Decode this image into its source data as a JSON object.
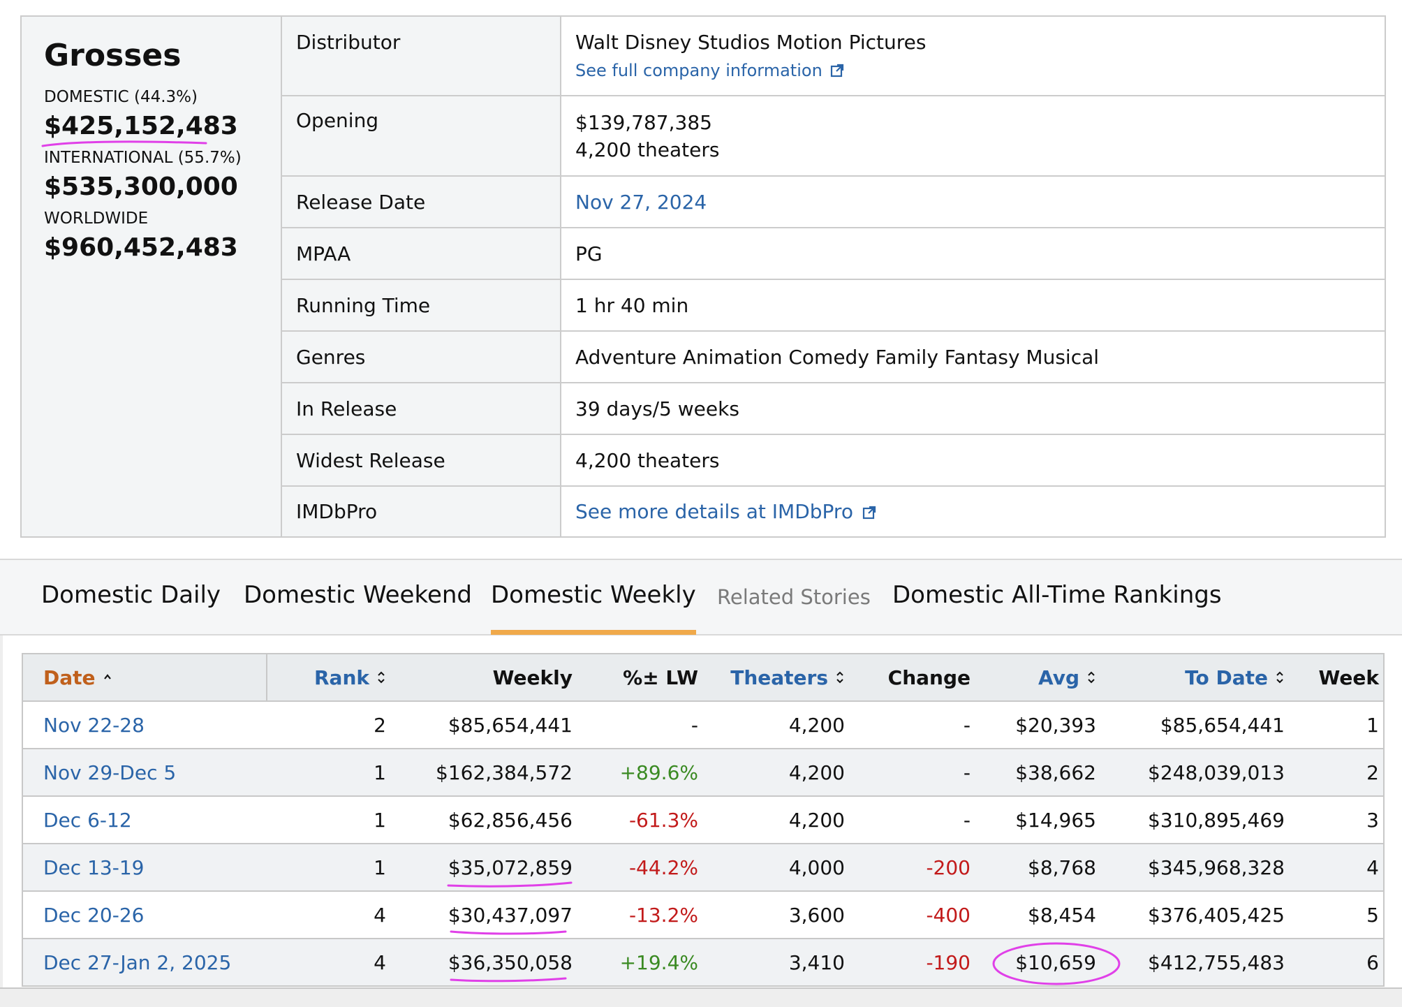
{
  "grosses": {
    "title": "Grosses",
    "domestic_label": "DOMESTIC (44.3%)",
    "domestic_value": "$425,152,483",
    "international_label": "INTERNATIONAL (55.7%)",
    "international_value": "$535,300,000",
    "worldwide_label": "WORLDWIDE",
    "worldwide_value": "$960,452,483"
  },
  "summary": {
    "distributor_label": "Distributor",
    "distributor_value": "Walt Disney Studios Motion Pictures",
    "distributor_link": "See full company information",
    "opening_label": "Opening",
    "opening_gross": "$139,787,385",
    "opening_theaters": "4,200 theaters",
    "release_date_label": "Release Date",
    "release_date_value": "Nov 27, 2024",
    "mpaa_label": "MPAA",
    "mpaa_value": "PG",
    "running_time_label": "Running Time",
    "running_time_value": "1 hr 40 min",
    "genres_label": "Genres",
    "genres_value": "Adventure Animation Comedy Family Fantasy Musical",
    "in_release_label": "In Release",
    "in_release_value": "39 days/5 weeks",
    "widest_release_label": "Widest Release",
    "widest_release_value": "4,200 theaters",
    "imdbpro_label": "IMDbPro",
    "imdbpro_link": "See more details at IMDbPro"
  },
  "tabs": [
    {
      "label": "Domestic Daily"
    },
    {
      "label": "Domestic Weekend"
    },
    {
      "label": "Domestic Weekly",
      "active": true
    },
    {
      "label": "Related Stories"
    },
    {
      "label": "Domestic All-Time Rankings"
    }
  ],
  "weekly": {
    "headers": {
      "date": "Date",
      "rank": "Rank",
      "weekly": "Weekly",
      "pct": "%± LW",
      "theaters": "Theaters",
      "change": "Change",
      "avg": "Avg",
      "to_date": "To Date",
      "week": "Week"
    },
    "rows": [
      {
        "date": "Nov 22-28",
        "rank": "2",
        "weekly": "$85,654,441",
        "pct": "-",
        "theaters": "4,200",
        "change": "-",
        "avg": "$20,393",
        "to_date": "$85,654,441",
        "week": "1"
      },
      {
        "date": "Nov 29-Dec 5",
        "rank": "1",
        "weekly": "$162,384,572",
        "pct": "+89.6%",
        "theaters": "4,200",
        "change": "-",
        "avg": "$38,662",
        "to_date": "$248,039,013",
        "week": "2"
      },
      {
        "date": "Dec 6-12",
        "rank": "1",
        "weekly": "$62,856,456",
        "pct": "-61.3%",
        "theaters": "4,200",
        "change": "-",
        "avg": "$14,965",
        "to_date": "$310,895,469",
        "week": "3"
      },
      {
        "date": "Dec 13-19",
        "rank": "1",
        "weekly": "$35,072,859",
        "pct": "-44.2%",
        "theaters": "4,000",
        "change": "-200",
        "avg": "$8,768",
        "to_date": "$345,968,328",
        "week": "4"
      },
      {
        "date": "Dec 20-26",
        "rank": "4",
        "weekly": "$30,437,097",
        "pct": "-13.2%",
        "theaters": "3,600",
        "change": "-400",
        "avg": "$8,454",
        "to_date": "$376,405,425",
        "week": "5"
      },
      {
        "date": "Dec 27-Jan 2, 2025",
        "rank": "4",
        "weekly": "$36,350,058",
        "pct": "+19.4%",
        "theaters": "3,410",
        "change": "-190",
        "avg": "$10,659",
        "to_date": "$412,755,483",
        "week": "6"
      }
    ]
  },
  "colors": {
    "link": "#2a64a8",
    "positive": "#3a8a22",
    "negative": "#c21a1a",
    "sorted_header": "#c0601c",
    "active_tab_underline": "#f0a94a",
    "annotation": "#e040e8"
  }
}
